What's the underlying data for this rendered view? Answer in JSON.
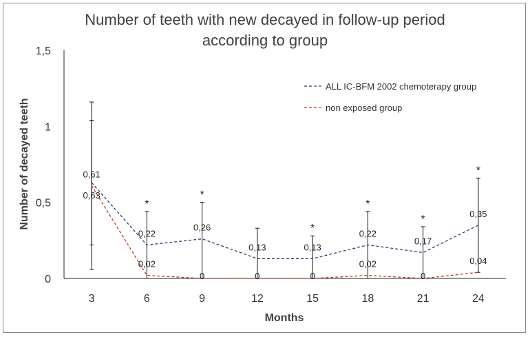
{
  "chart_data": {
    "type": "line",
    "title": [
      "Number of teeth with new decayed in follow-up period",
      "according to group"
    ],
    "xlabel": "Months",
    "ylabel": "Number of decayed  teeth",
    "categories": [
      "3",
      "6",
      "9",
      "12",
      "15",
      "18",
      "21",
      "24"
    ],
    "ylim": [
      0,
      1.5
    ],
    "yticks": [
      0,
      0.5,
      1,
      1.5
    ],
    "ytick_labels": [
      "0",
      "0,5",
      "1",
      "1,5"
    ],
    "series": [
      {
        "name": "ALL IC-BFM 2002 chemoterapy group",
        "color": "#2e3b6e",
        "values": [
          0.63,
          0.22,
          0.26,
          0.13,
          0.13,
          0.22,
          0.17,
          0.35
        ],
        "labels": [
          "0,63",
          "0,22",
          "0,26",
          "0,13",
          "0,13",
          "0,22",
          "0,17",
          "0,35"
        ],
        "error_high": [
          1.16,
          0.44,
          0.5,
          0.33,
          0.28,
          0.44,
          0.34,
          0.66
        ],
        "error_low": [
          0.06,
          0,
          0,
          0,
          0,
          0,
          0,
          0.04
        ]
      },
      {
        "name": "non exposed group",
        "color": "#c0392b",
        "values": [
          0.61,
          0.02,
          0,
          0,
          0,
          0.02,
          0,
          0.04
        ],
        "labels": [
          "0,61",
          "0,02",
          "0",
          "0",
          "0",
          "0,02",
          "0",
          "0,04"
        ],
        "error_high": [
          1.04,
          null,
          null,
          null,
          null,
          null,
          null,
          null
        ],
        "error_low": [
          0.22,
          null,
          null,
          null,
          null,
          null,
          null,
          null
        ]
      }
    ],
    "significance_marker": "*",
    "significant_categories": [
      "6",
      "9",
      "15",
      "18",
      "21",
      "24"
    ],
    "legend_position": "top-right",
    "grid": false
  }
}
